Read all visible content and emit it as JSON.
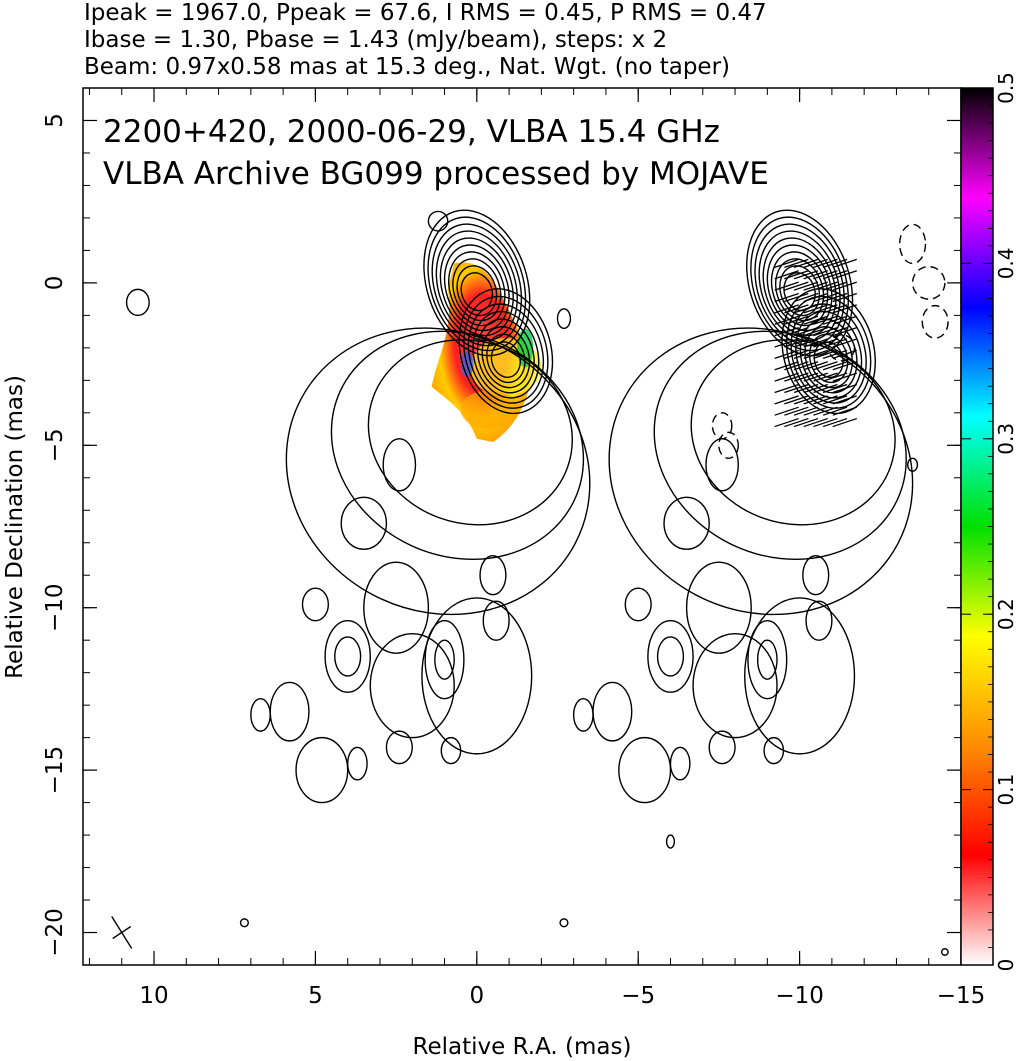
{
  "header": {
    "line1": "Ipeak = 1967.0, Ppeak = 67.6, I RMS = 0.45, P RMS = 0.47",
    "line2": "Ibase = 1.30, Pbase = 1.43 (mJy/beam), steps: x 2",
    "line3": "Beam: 0.97x0.58 mas at 15.3 deg., Nat. Wgt. (no taper)"
  },
  "chart_data": {
    "type": "heatmap",
    "title": "2200+420, 2000-06-29, VLBA 15.4 GHz",
    "subtitle": "VLBA Archive BG099 processed by MOJAVE",
    "xlabel": "Relative R.A. (mas)",
    "ylabel": "Relative Declination (mas)",
    "xlim": [
      12.2,
      -15
    ],
    "ylim": [
      -21,
      6
    ],
    "x_ticks": [
      10,
      5,
      0,
      -5,
      -10,
      -15
    ],
    "y_ticks": [
      5,
      0,
      -5,
      -10,
      -15,
      -20
    ],
    "x_tick_labels": [
      "10",
      "5",
      "0",
      "−5",
      "−10",
      "−15"
    ],
    "y_tick_labels": [
      "5",
      "0",
      "−5",
      "−10",
      "−15",
      "−20"
    ],
    "colorbar": {
      "range": [
        0,
        0.5
      ],
      "ticks": [
        "0",
        "0.1",
        "0.2",
        "0.3",
        "0.4",
        "0.5"
      ],
      "colors": [
        "#ffffff",
        "#ff0000",
        "#ff8c00",
        "#ffff00",
        "#00e000",
        "#00ffff",
        "#0000ff",
        "#ff00ff",
        "#000000"
      ]
    },
    "core": {
      "ra": 0,
      "dec": 0
    },
    "knot": {
      "ra": -0.9,
      "dec": -2.1
    },
    "panel_offset_ra": -10,
    "contour_levels": 10
  }
}
